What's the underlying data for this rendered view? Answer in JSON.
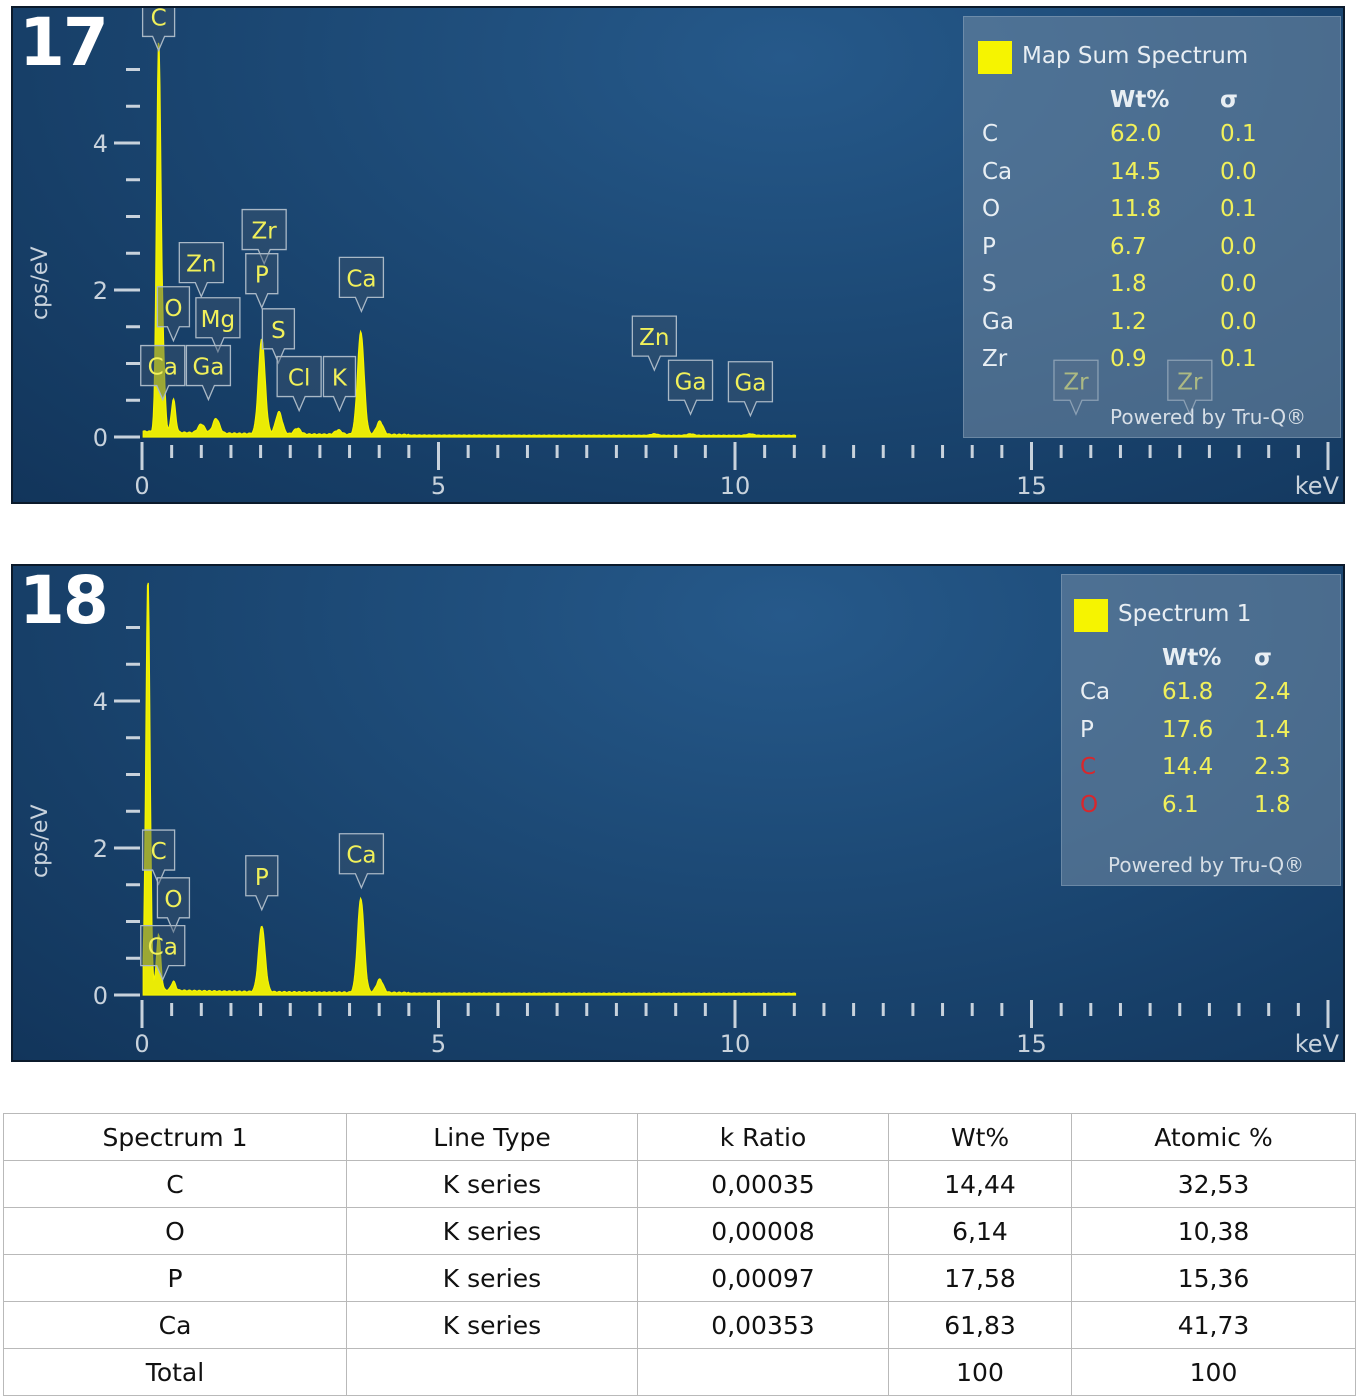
{
  "chart_data": [
    {
      "type": "line",
      "figure_label": "17",
      "xlabel": "keV",
      "ylabel": "cps/eV",
      "xlim": [
        0,
        20
      ],
      "ylim": [
        0,
        5
      ],
      "xticks": [
        "0",
        "5",
        "10",
        "15"
      ],
      "yticks": [
        "0",
        "2",
        "4"
      ],
      "series_color": "#f6f400",
      "peaks": [
        {
          "x": 0.28,
          "y": 5.2
        },
        {
          "x": 0.35,
          "y": 1.0
        },
        {
          "x": 0.53,
          "y": 0.45
        },
        {
          "x": 1.0,
          "y": 0.12
        },
        {
          "x": 1.25,
          "y": 0.2
        },
        {
          "x": 2.02,
          "y": 1.3
        },
        {
          "x": 2.31,
          "y": 0.3
        },
        {
          "x": 2.62,
          "y": 0.08
        },
        {
          "x": 3.31,
          "y": 0.06
        },
        {
          "x": 3.69,
          "y": 1.4
        },
        {
          "x": 4.01,
          "y": 0.18
        },
        {
          "x": 8.64,
          "y": 0.02
        },
        {
          "x": 9.25,
          "y": 0.02
        },
        {
          "x": 10.26,
          "y": 0.02
        }
      ],
      "peak_labels": [
        {
          "text": "C",
          "x": 0.28,
          "y": 5.45
        },
        {
          "text": "Zn",
          "x": 1.0,
          "y": 2.1
        },
        {
          "text": "Zr",
          "x": 2.06,
          "y": 2.55
        },
        {
          "text": "P",
          "x": 2.02,
          "y": 1.95
        },
        {
          "text": "Ca",
          "x": 3.7,
          "y": 1.9
        },
        {
          "text": "O",
          "x": 0.53,
          "y": 1.5
        },
        {
          "text": "Mg",
          "x": 1.28,
          "y": 1.35
        },
        {
          "text": "S",
          "x": 2.3,
          "y": 1.2
        },
        {
          "text": "Ca",
          "x": 0.35,
          "y": 0.7
        },
        {
          "text": "Ga",
          "x": 1.12,
          "y": 0.7
        },
        {
          "text": "Cl",
          "x": 2.65,
          "y": 0.55
        },
        {
          "text": "K",
          "x": 3.33,
          "y": 0.55
        },
        {
          "text": "Zn",
          "x": 8.64,
          "y": 1.1
        },
        {
          "text": "Ga",
          "x": 9.25,
          "y": 0.5
        },
        {
          "text": "Ga",
          "x": 10.26,
          "y": 0.48
        },
        {
          "text": "Zr",
          "x": 15.75,
          "y": 0.5
        },
        {
          "text": "Zr",
          "x": 17.67,
          "y": 0.5
        }
      ],
      "legend": {
        "title": "Map Sum Spectrum",
        "col_wt": "Wt%",
        "col_sigma": "σ",
        "rows": [
          {
            "element": "C",
            "wt": "62.0",
            "sigma": "0.1",
            "element_color": "#e8eef3"
          },
          {
            "element": "Ca",
            "wt": "14.5",
            "sigma": "0.0",
            "element_color": "#e8eef3"
          },
          {
            "element": "O",
            "wt": "11.8",
            "sigma": "0.1",
            "element_color": "#e8eef3"
          },
          {
            "element": "P",
            "wt": "6.7",
            "sigma": "0.0",
            "element_color": "#e8eef3"
          },
          {
            "element": "S",
            "wt": "1.8",
            "sigma": "0.0",
            "element_color": "#e8eef3"
          },
          {
            "element": "Ga",
            "wt": "1.2",
            "sigma": "0.0",
            "element_color": "#e8eef3"
          },
          {
            "element": "Zr",
            "wt": "0.9",
            "sigma": "0.1",
            "element_color": "#e8eef3"
          }
        ],
        "powered": "Powered by Tru-Q®"
      }
    },
    {
      "type": "line",
      "figure_label": "18",
      "xlabel": "keV",
      "ylabel": "cps/eV",
      "xlim": [
        0,
        20
      ],
      "ylim": [
        0,
        5
      ],
      "xticks": [
        "0",
        "5",
        "10",
        "15"
      ],
      "yticks": [
        "0",
        "2",
        "4"
      ],
      "series_color": "#f6f400",
      "peaks": [
        {
          "x": 0.1,
          "y": 5.6
        },
        {
          "x": 0.28,
          "y": 0.75
        },
        {
          "x": 0.53,
          "y": 0.12
        },
        {
          "x": 2.02,
          "y": 0.9
        },
        {
          "x": 3.69,
          "y": 1.28
        },
        {
          "x": 4.01,
          "y": 0.18
        }
      ],
      "peak_labels": [
        {
          "text": "C",
          "x": 0.28,
          "y": 1.7
        },
        {
          "text": "O",
          "x": 0.53,
          "y": 1.05
        },
        {
          "text": "Ca",
          "x": 0.35,
          "y": 0.4
        },
        {
          "text": "P",
          "x": 2.02,
          "y": 1.35
        },
        {
          "text": "Ca",
          "x": 3.7,
          "y": 1.65
        }
      ],
      "legend": {
        "title": "Spectrum 1",
        "col_wt": "Wt%",
        "col_sigma": "σ",
        "rows": [
          {
            "element": "Ca",
            "wt": "61.8",
            "sigma": "2.4",
            "element_color": "#e8eef3"
          },
          {
            "element": "P",
            "wt": "17.6",
            "sigma": "1.4",
            "element_color": "#e8eef3"
          },
          {
            "element": "C",
            "wt": "14.4",
            "sigma": "2.3",
            "element_color": "#d8272c"
          },
          {
            "element": "O",
            "wt": "6.1",
            "sigma": "1.8",
            "element_color": "#d8272c"
          }
        ],
        "powered": "Powered by Tru-Q®"
      }
    },
    {
      "type": "table",
      "columns": [
        "Spectrum 1",
        "Line Type",
        "k Ratio",
        "Wt%",
        "Atomic %"
      ],
      "rows": [
        [
          "C",
          "K series",
          "0,00035",
          "14,44",
          "32,53"
        ],
        [
          "O",
          "K series",
          "0,00008",
          "6,14",
          "10,38"
        ],
        [
          "P",
          "K series",
          "0,00097",
          "17,58",
          "15,36"
        ],
        [
          "Ca",
          "K series",
          "0,00353",
          "61,83",
          "41,73"
        ],
        [
          "Total",
          "",
          "",
          "100",
          "100"
        ]
      ]
    }
  ]
}
